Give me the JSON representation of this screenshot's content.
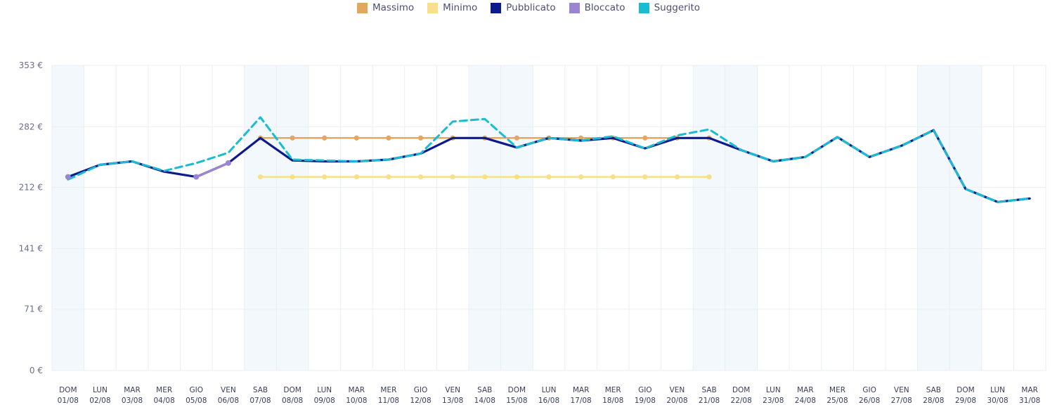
{
  "chart_data": {
    "type": "line",
    "legend_position": "top-center",
    "grid": true,
    "ylim": [
      0,
      353
    ],
    "y_ticks": [
      "0 €",
      "71 €",
      "141 €",
      "212 €",
      "282 €",
      "353 €"
    ],
    "y_tick_values": [
      0,
      71,
      141,
      212,
      282,
      353
    ],
    "x_days": [
      "DOM",
      "LUN",
      "MAR",
      "MER",
      "GIO",
      "VEN",
      "SAB",
      "DOM",
      "LUN",
      "MAR",
      "MER",
      "GIO",
      "VEN",
      "SAB",
      "DOM",
      "LUN",
      "MAR",
      "MER",
      "GIO",
      "VEN",
      "SAB",
      "DOM",
      "LUN",
      "MAR",
      "MER",
      "GIO",
      "VEN",
      "SAB",
      "DOM",
      "LUN",
      "MAR"
    ],
    "x_dates": [
      "01/08",
      "02/08",
      "03/08",
      "04/08",
      "05/08",
      "06/08",
      "07/08",
      "08/08",
      "09/08",
      "10/08",
      "11/08",
      "12/08",
      "13/08",
      "14/08",
      "15/08",
      "16/08",
      "17/08",
      "18/08",
      "19/08",
      "20/08",
      "21/08",
      "22/08",
      "23/08",
      "24/08",
      "25/08",
      "26/08",
      "27/08",
      "28/08",
      "29/08",
      "30/08",
      "31/08"
    ],
    "weekend_indices": [
      0,
      6,
      7,
      13,
      14,
      20,
      21,
      27,
      28
    ],
    "series": [
      {
        "name": "Massimo",
        "color": "#e2a860",
        "style": "solid-markers",
        "values": [
          null,
          null,
          null,
          null,
          null,
          null,
          269,
          269,
          269,
          269,
          269,
          269,
          269,
          269,
          269,
          269,
          269,
          269,
          269,
          269,
          269,
          null,
          null,
          null,
          null,
          null,
          null,
          null,
          null,
          null,
          null
        ]
      },
      {
        "name": "Minimo",
        "color": "#f8df8c",
        "style": "solid-markers",
        "values": [
          null,
          null,
          null,
          null,
          null,
          null,
          224,
          224,
          224,
          224,
          224,
          224,
          224,
          224,
          224,
          224,
          224,
          224,
          224,
          224,
          224,
          null,
          null,
          null,
          null,
          null,
          null,
          null,
          null,
          null,
          null
        ]
      },
      {
        "name": "Pubblicato",
        "color": "#0d1a8c",
        "style": "solid",
        "values": [
          224,
          238,
          242,
          230,
          224,
          240,
          269,
          243,
          242,
          242,
          244,
          251,
          269,
          269,
          258,
          269,
          266,
          269,
          257,
          269,
          269,
          255,
          242,
          247,
          270,
          247,
          260,
          278,
          210,
          195,
          199
        ]
      },
      {
        "name": "Bloccato",
        "color": "#9b85d1",
        "style": "solid-markers",
        "values": [
          224,
          null,
          null,
          null,
          224,
          240,
          null,
          null,
          null,
          null,
          null,
          null,
          null,
          null,
          null,
          null,
          null,
          null,
          null,
          null,
          null,
          null,
          null,
          null,
          null,
          null,
          null,
          null,
          null,
          null,
          null
        ]
      },
      {
        "name": "Suggerito",
        "color": "#19bdd1",
        "style": "dashed",
        "values": [
          221,
          238,
          242,
          231,
          240,
          252,
          293,
          244,
          243,
          242,
          244,
          251,
          288,
          291,
          258,
          269,
          266,
          271,
          257,
          272,
          279,
          255,
          242,
          247,
          270,
          247,
          260,
          278,
          210,
          195,
          199
        ]
      }
    ]
  }
}
